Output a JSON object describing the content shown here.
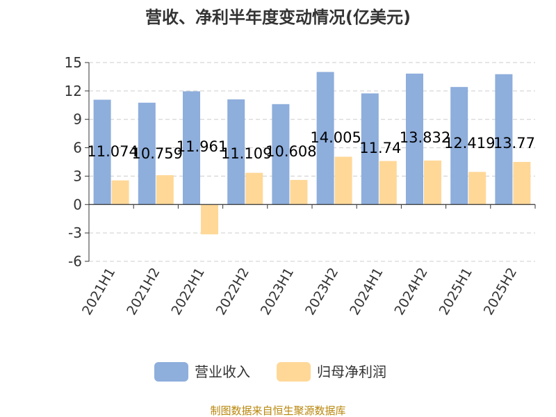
{
  "chart_data": {
    "type": "bar",
    "title": "营收、净利半年度变动情况(亿美元)",
    "categories": [
      "2021H1",
      "2021H2",
      "2022H1",
      "2022H2",
      "2023H1",
      "2023H2",
      "2024H1",
      "2024H2",
      "2025H1",
      "2025H2"
    ],
    "series": [
      {
        "name": "营业收入",
        "color": "#8eaedc",
        "values": [
          11.074,
          10.759,
          11.961,
          11.109,
          10.608,
          14.005,
          11.74,
          13.832,
          12.419,
          13.77
        ],
        "data_labels": [
          "11.074",
          "10.759",
          "11.961",
          "11.109",
          "10.608",
          "14.005",
          "11.74",
          "13.832",
          "12.419",
          "13.77"
        ]
      },
      {
        "name": "归母净利润",
        "color": "#ffd898",
        "values": [
          2.55,
          3.1,
          -3.15,
          3.35,
          2.6,
          5.05,
          4.6,
          4.65,
          3.45,
          4.5
        ]
      }
    ],
    "yticks": [
      "15",
      "12",
      "9",
      "6",
      "3",
      "0",
      "-3",
      "-6"
    ],
    "ylim": [
      -6,
      15
    ],
    "grid": true,
    "legend_position": "bottom",
    "source": "制图数据来自恒生聚源数据库"
  }
}
